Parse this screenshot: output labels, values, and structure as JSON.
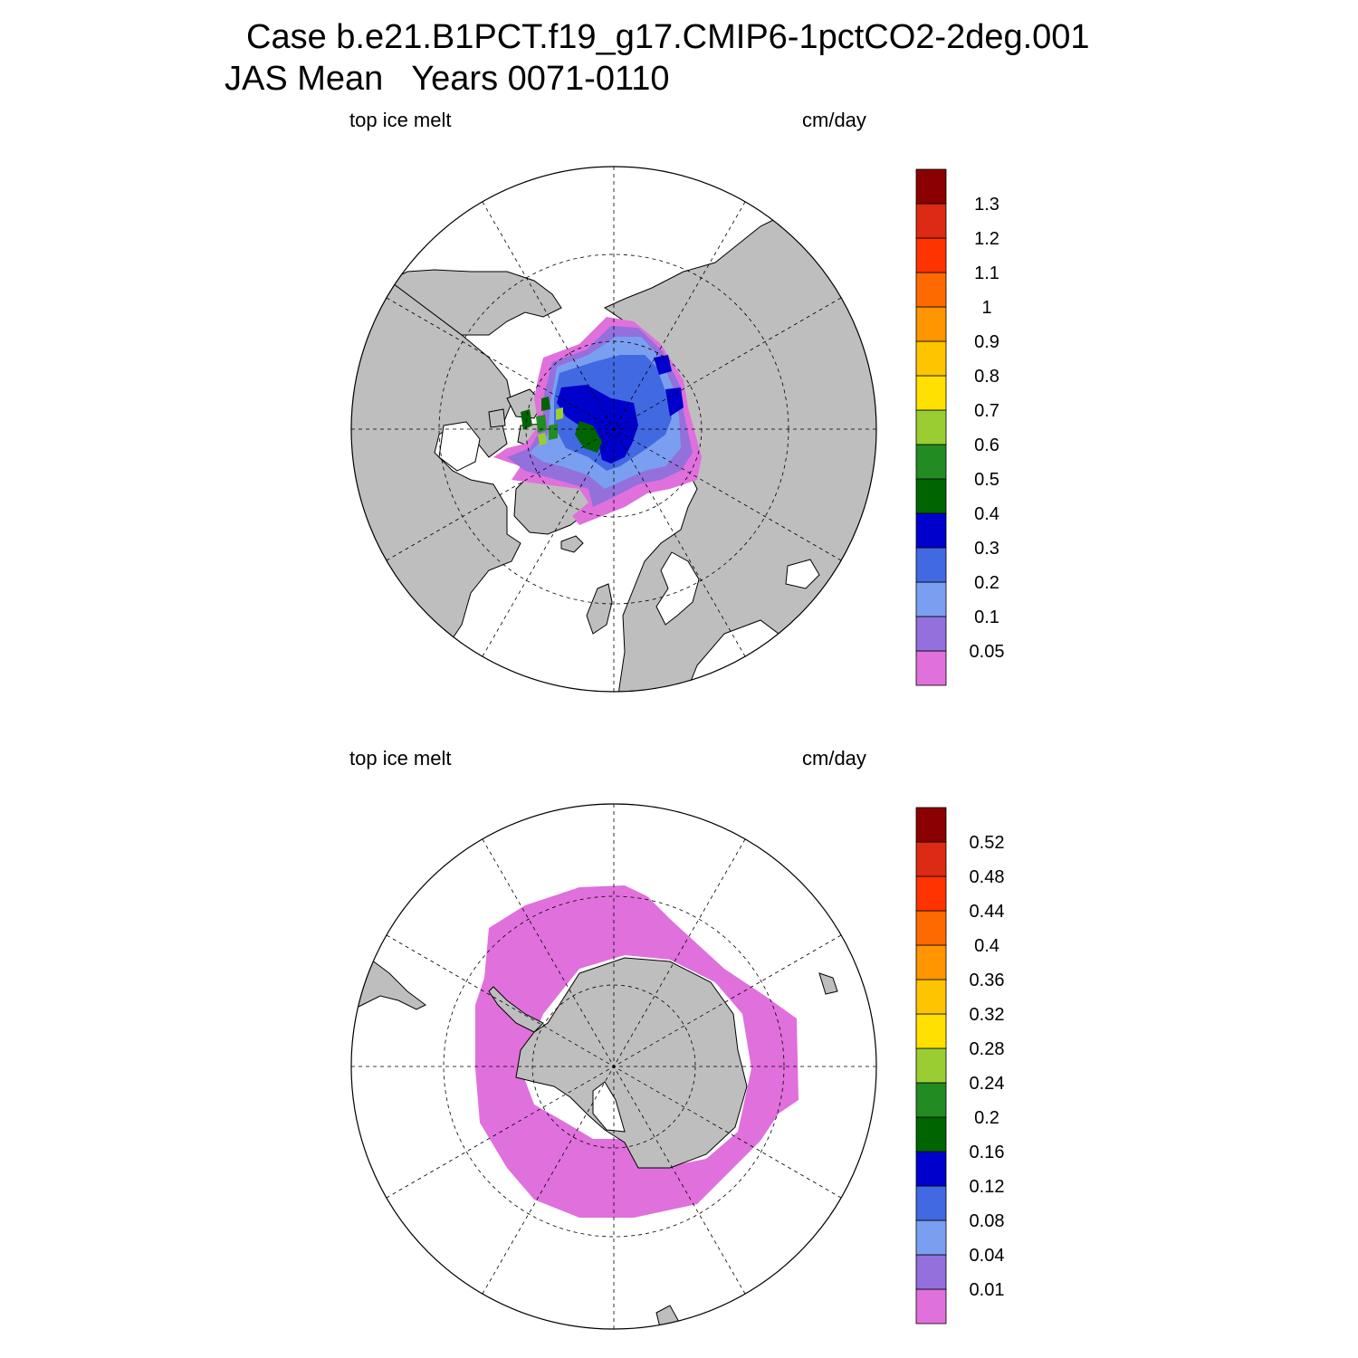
{
  "title": {
    "line1": "Case b.e21.B1PCT.f19_g17.CMIP6-1pctCO2-2deg.001",
    "line2": "JAS Mean   Years 0071-0110"
  },
  "panels": [
    {
      "id": "arctic",
      "left_label": "top ice melt",
      "right_label": "cm/day",
      "colorbar": {
        "levels": [
          "0.05",
          "0.1",
          "0.2",
          "0.3",
          "0.4",
          "0.5",
          "0.6",
          "0.7",
          "0.8",
          "0.9",
          "1",
          "1.1",
          "1.2",
          "1.3"
        ],
        "colors": [
          "#e070dc",
          "#9370db",
          "#7b9ff0",
          "#4169e1",
          "#0000cd",
          "#006400",
          "#228b22",
          "#9acd32",
          "#ffe000",
          "#ffc400",
          "#ff9500",
          "#ff6a00",
          "#ff3300",
          "#dc2a14",
          "#8b0000"
        ]
      }
    },
    {
      "id": "antarctic",
      "left_label": "top ice melt",
      "right_label": "cm/day",
      "colorbar": {
        "levels": [
          "0.01",
          "0.04",
          "0.08",
          "0.12",
          "0.16",
          "0.2",
          "0.24",
          "0.28",
          "0.32",
          "0.36",
          "0.4",
          "0.44",
          "0.48",
          "0.52"
        ],
        "colors": [
          "#e070dc",
          "#9370db",
          "#7b9ff0",
          "#4169e1",
          "#0000cd",
          "#006400",
          "#228b22",
          "#9acd32",
          "#ffe000",
          "#ffc400",
          "#ff9500",
          "#ff6a00",
          "#ff3300",
          "#dc2a14",
          "#8b0000"
        ]
      }
    }
  ],
  "styles": {
    "land": "#bebebe",
    "ocean": "#ffffff"
  }
}
